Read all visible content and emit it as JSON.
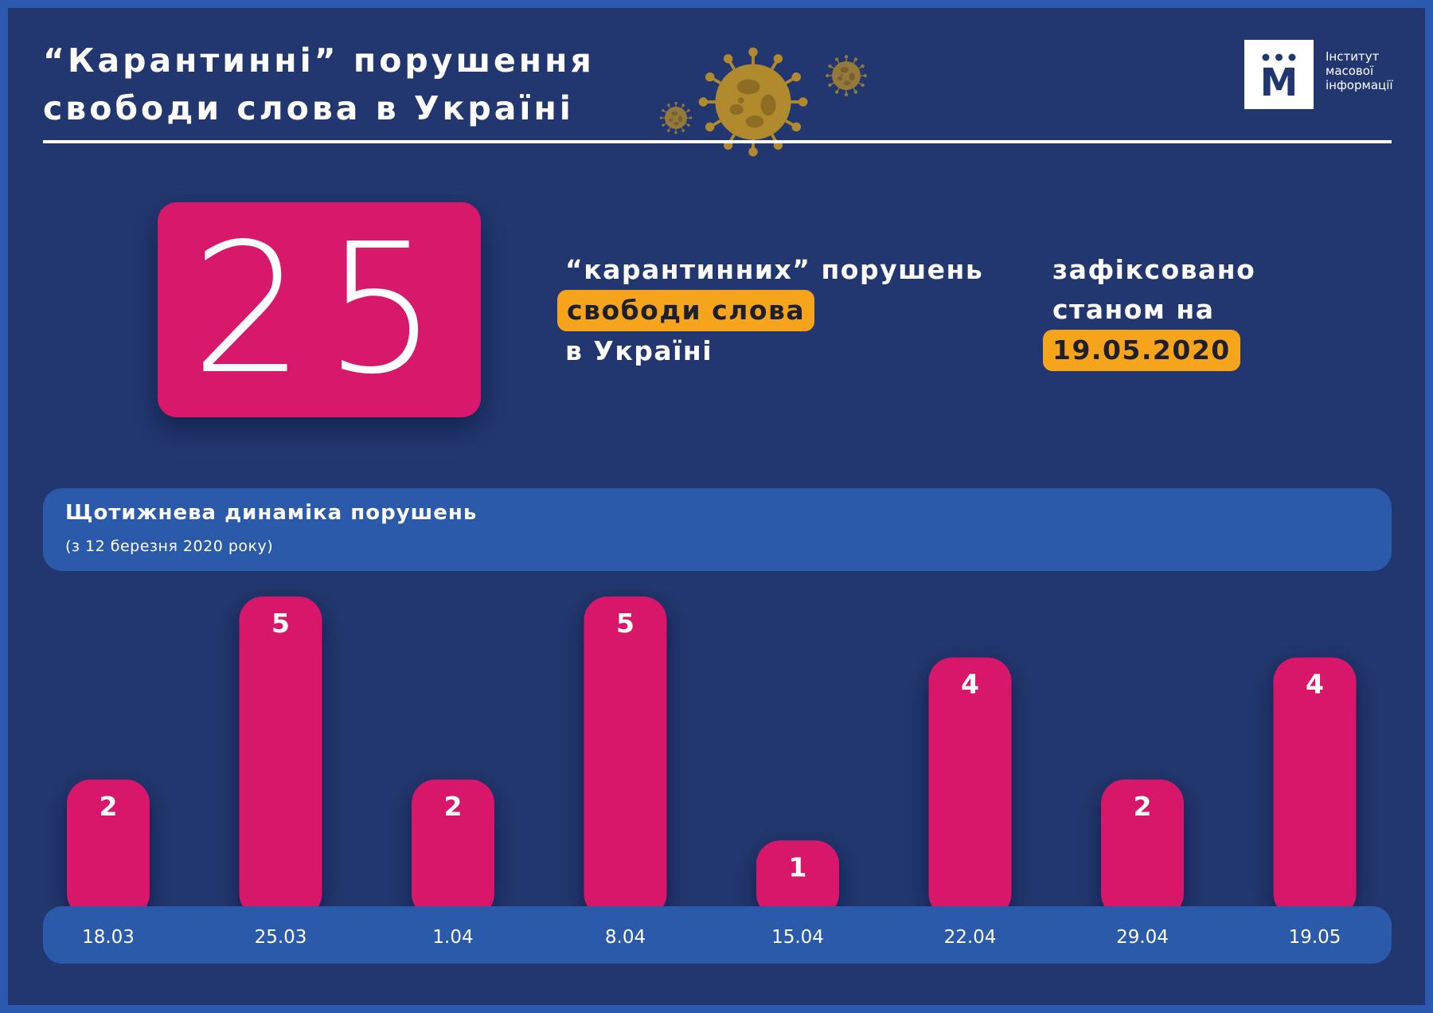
{
  "header": {
    "title_line1": "“Карантинні” порушення",
    "title_line2": "свободи слова в Україні"
  },
  "logo": {
    "mark": "M",
    "line1": "Інститут",
    "line2": "масової",
    "line3": "інформації"
  },
  "summary": {
    "total": "25",
    "text_line1": "“карантинних” порушень",
    "highlight": "свободи слова",
    "text_line3": "в Україні",
    "right_line1": "зафіксовано",
    "right_line2": "станом на",
    "date": "19.05.2020"
  },
  "colors": {
    "background": "#22376f",
    "border": "#2b59b0",
    "bar": "#d8186a",
    "accent": "#f6a41b",
    "band": "#2b5aab"
  },
  "icons": [
    "coronavirus-icon",
    "institute-logo-icon"
  ],
  "chart_data": {
    "type": "bar",
    "title": "Щотижнева динаміка порушень",
    "subtitle": "(з 12 березня 2020 року)",
    "categories": [
      "18.03",
      "25.03",
      "1.04",
      "8.04",
      "15.04",
      "22.04",
      "29.04",
      "19.05"
    ],
    "values": [
      2,
      5,
      2,
      5,
      1,
      4,
      2,
      4
    ],
    "ylim": [
      0,
      5
    ],
    "grid": false,
    "legend": "none",
    "data_labels": true
  }
}
